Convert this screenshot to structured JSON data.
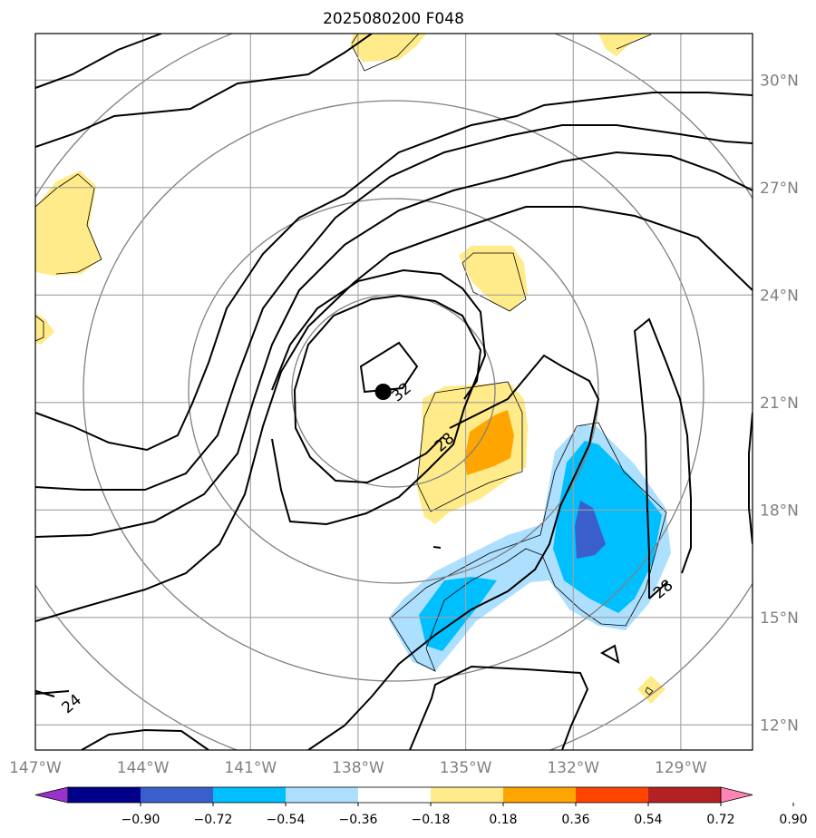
{
  "chart_data": {
    "type": "contour",
    "title": "2025080200 F048",
    "xlabel": "",
    "ylabel": "",
    "x_ticks": [
      "147°W",
      "144°W",
      "141°W",
      "138°W",
      "135°W",
      "132°W",
      "129°W"
    ],
    "x_tick_values": [
      -147,
      -144,
      -141,
      -138,
      -135,
      -132,
      -129
    ],
    "y_ticks": [
      "30°N",
      "27°N",
      "24°N",
      "21°N",
      "18°N",
      "15°N",
      "12°N"
    ],
    "y_tick_values": [
      30,
      27,
      24,
      21,
      18,
      15,
      12
    ],
    "xlim": [
      -147.0,
      -127.0
    ],
    "ylim": [
      11.3,
      31.3
    ],
    "grid": true,
    "storm_center": {
      "lon": -137.3,
      "lat": 21.3,
      "marker": "filled black circle"
    },
    "contour_labels": [
      {
        "text": "32",
        "lon": -136.8,
        "lat": 21.3
      },
      {
        "text": "28",
        "lon": -135.6,
        "lat": 19.9
      },
      {
        "text": "28",
        "lon": -129.5,
        "lat": 15.8
      },
      {
        "text": "24",
        "lon": -146.0,
        "lat": 12.6
      }
    ],
    "colorbar": {
      "ticks": [
        "−0.90",
        "−0.72",
        "−0.54",
        "−0.36",
        "−0.18",
        "0.18",
        "0.36",
        "0.54",
        "0.72",
        "0.90"
      ],
      "levels": [
        -0.9,
        -0.72,
        -0.54,
        -0.36,
        -0.18,
        0.18,
        0.36,
        0.54,
        0.72,
        0.9
      ],
      "colors": [
        "#9932CC",
        "#00008B",
        "#3A5FCD",
        "#00BFFF",
        "#ADDFFF",
        "#FFFFFF",
        "#FFEB8A",
        "#FFA500",
        "#FF4500",
        "#B22222",
        "#FF85B5"
      ],
      "extend": "both"
    }
  }
}
